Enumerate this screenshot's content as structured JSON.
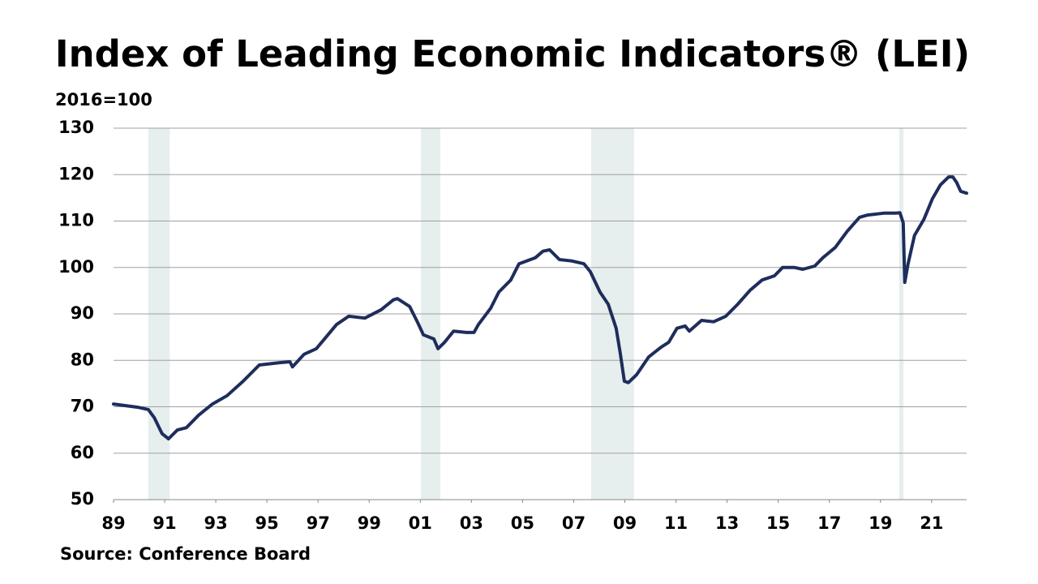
{
  "chart_data": {
    "type": "line",
    "title": "Index of Leading Economic Indicators® (LEI)",
    "y_label": "2016=100",
    "source": "Source: Conference Board",
    "color": "#1f2d5c",
    "shade_color": "#e6eeee",
    "grid": true,
    "shaded_ranges": [
      [
        1990.36,
        1991.2
      ],
      [
        2001.02,
        2001.78
      ],
      [
        2007.68,
        2009.36
      ],
      [
        2019.73,
        2019.9
      ]
    ],
    "x": [
      1989.0,
      1989.95,
      1990.36,
      1990.6,
      1990.9,
      1991.15,
      1991.5,
      1991.85,
      1992.33,
      1992.87,
      1993.44,
      1994.07,
      1994.7,
      1995.5,
      1995.9,
      1996.0,
      1996.45,
      1996.93,
      1997.25,
      1997.72,
      1998.2,
      1998.83,
      1999.47,
      1999.94,
      2000.1,
      2000.58,
      2000.9,
      2001.12,
      2001.53,
      2001.69,
      2001.95,
      2002.3,
      2002.8,
      2003.1,
      2003.27,
      2003.75,
      2004.07,
      2004.54,
      2004.86,
      2005.5,
      2005.8,
      2006.06,
      2006.44,
      2006.92,
      2007.4,
      2007.65,
      2008.03,
      2008.35,
      2008.66,
      2008.82,
      2008.98,
      2009.14,
      2009.46,
      2009.93,
      2010.41,
      2010.72,
      2011.04,
      2011.36,
      2011.52,
      2012.0,
      2012.47,
      2012.95,
      2013.42,
      2013.9,
      2014.37,
      2014.85,
      2015.17,
      2015.64,
      2015.96,
      2016.43,
      2016.75,
      2017.23,
      2017.7,
      2018.18,
      2018.5,
      2019.13,
      2019.6,
      2019.76,
      2019.89,
      2019.95,
      2020.08,
      2020.33,
      2020.7,
      2021.03,
      2021.35,
      2021.67,
      2021.83,
      2021.98,
      2022.14,
      2022.37
    ],
    "values": [
      70.6,
      69.9,
      69.4,
      67.6,
      64.2,
      63.1,
      65.0,
      65.5,
      68.2,
      70.6,
      72.4,
      75.5,
      79.0,
      79.5,
      79.7,
      78.6,
      81.3,
      82.5,
      84.6,
      87.7,
      89.5,
      89.1,
      90.9,
      93.0,
      93.3,
      91.6,
      88.1,
      85.5,
      84.6,
      82.5,
      83.9,
      86.3,
      86.0,
      86.0,
      87.7,
      91.2,
      94.7,
      97.3,
      100.8,
      102.1,
      103.5,
      103.8,
      101.7,
      101.4,
      100.8,
      99.1,
      94.7,
      92.1,
      86.9,
      81.6,
      75.5,
      75.2,
      76.9,
      80.7,
      82.8,
      83.9,
      86.9,
      87.4,
      86.3,
      88.6,
      88.3,
      89.5,
      92.1,
      95.1,
      97.3,
      98.2,
      100.0,
      100.0,
      99.6,
      100.3,
      102.1,
      104.3,
      107.8,
      110.8,
      111.3,
      111.7,
      111.7,
      111.8,
      109.6,
      96.8,
      100.8,
      106.9,
      110.4,
      114.8,
      117.8,
      119.5,
      119.5,
      118.3,
      116.4,
      116.0
    ],
    "xlim": [
      1989,
      2022.37
    ],
    "ylim": [
      50,
      130
    ],
    "yticks": [
      50,
      60,
      70,
      80,
      90,
      100,
      110,
      120,
      130
    ],
    "xticks": [
      {
        "value": 1989,
        "label": "89"
      },
      {
        "value": 1991,
        "label": "91"
      },
      {
        "value": 1993,
        "label": "93"
      },
      {
        "value": 1995,
        "label": "95"
      },
      {
        "value": 1997,
        "label": "97"
      },
      {
        "value": 1999,
        "label": "99"
      },
      {
        "value": 2001,
        "label": "01"
      },
      {
        "value": 2003,
        "label": "03"
      },
      {
        "value": 2005,
        "label": "05"
      },
      {
        "value": 2007,
        "label": "07"
      },
      {
        "value": 2009,
        "label": "09"
      },
      {
        "value": 2011,
        "label": "11"
      },
      {
        "value": 2013,
        "label": "13"
      },
      {
        "value": 2015,
        "label": "15"
      },
      {
        "value": 2017,
        "label": "17"
      },
      {
        "value": 2019,
        "label": "19"
      },
      {
        "value": 2021,
        "label": "21"
      }
    ]
  }
}
